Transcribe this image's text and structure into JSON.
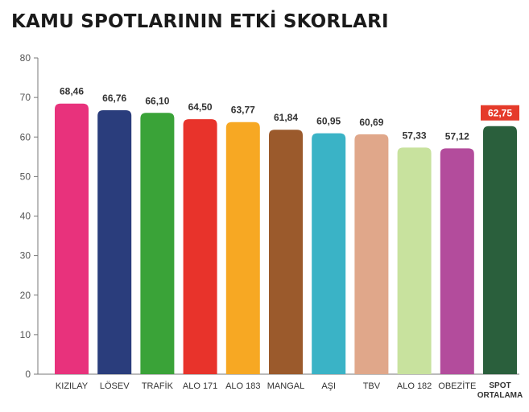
{
  "chart_data": {
    "type": "bar",
    "title": "KAMU SPOTLARININ ETKİ SKORLARI",
    "xlabel": "",
    "ylabel": "",
    "ylim": [
      0,
      80
    ],
    "yticks": [
      0,
      10,
      20,
      30,
      40,
      50,
      60,
      70,
      80
    ],
    "grid": false,
    "legend": "none",
    "categories": [
      "KIZILAY",
      "LÖSEV",
      "TRAFİK",
      "ALO 171",
      "ALO 183",
      "MANGAL",
      "AŞI",
      "TBV",
      "ALO 182",
      "OBEZİTE",
      "SPOT ORTALAMA"
    ],
    "values": [
      68.46,
      66.76,
      66.1,
      64.5,
      63.77,
      61.84,
      60.95,
      60.69,
      57.33,
      57.12,
      62.75
    ],
    "value_labels": [
      "68,46",
      "66,76",
      "66,10",
      "64,50",
      "63,77",
      "61,84",
      "60,95",
      "60,69",
      "57,33",
      "57,12",
      "62,75"
    ],
    "colors": [
      "#e8327c",
      "#2a3d7c",
      "#3aa338",
      "#e8332b",
      "#f7a823",
      "#9b5a2c",
      "#3ab3c6",
      "#e0a78a",
      "#c8e29e",
      "#b34c9c",
      "#2a5f3c"
    ],
    "highlight_label_color": "#e53a2a"
  }
}
